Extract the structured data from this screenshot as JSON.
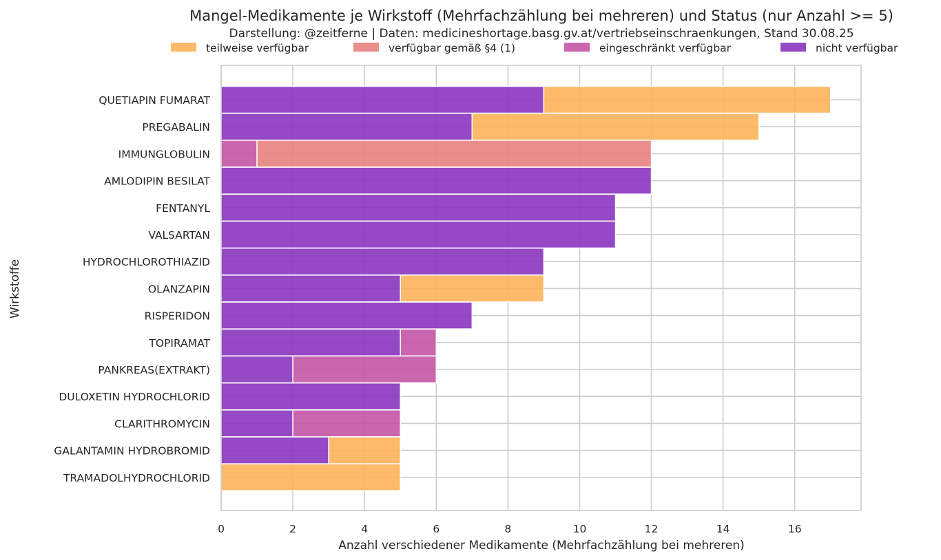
{
  "chart_data": {
    "type": "bar",
    "orientation": "horizontal",
    "stacked": true,
    "title": "Mangel-Medikamente je Wirkstoff (Mehrfachzählung bei mehreren) und Status (nur Anzahl >= 5)",
    "subtitle": "Darstellung: @zeitferne | Daten: medicineshortage.basg.gv.at/vertriebseinschraenkungen, Stand 30.08.25",
    "xlabel": "Anzahl verschiedener Medikamente (Mehrfachzählung bei mehreren)",
    "ylabel": "Wirkstoffe",
    "xlim": [
      0,
      17.85
    ],
    "xticks": [
      "0",
      "2",
      "4",
      "6",
      "8",
      "10",
      "12",
      "14",
      "16"
    ],
    "grid": true,
    "legend_position": "top",
    "categories": [
      "QUETIAPIN FUMARAT",
      "PREGABALIN",
      "IMMUNGLOBULIN",
      "AMLODIPIN BESILAT",
      "FENTANYL",
      "VALSARTAN",
      "HYDROCHLOROTHIAZID",
      "OLANZAPIN",
      "RISPERIDON",
      "TOPIRAMAT",
      "PANKREAS(EXTRAKT)",
      "DULOXETIN HYDROCHLORID",
      "CLARITHROMYCIN",
      "GALANTAMIN HYDROBROMID",
      "TRAMADOLHYDROCHLORID"
    ],
    "stack_order": [
      "nicht verfügbar",
      "eingeschränkt verfügbar",
      "verfügbar gemäß §4 (1)",
      "teilweise verfügbar"
    ],
    "series": [
      {
        "name": "teilweise verfügbar",
        "color": "#fdb35a",
        "values": [
          8,
          8,
          0,
          0,
          0,
          0,
          0,
          4,
          0,
          0,
          0,
          0,
          0,
          2,
          5
        ]
      },
      {
        "name": "verfügbar gemäß §4 (1)",
        "color": "#e8827f",
        "values": [
          0,
          0,
          11,
          0,
          0,
          0,
          0,
          0,
          0,
          0,
          0,
          0,
          0,
          0,
          0
        ]
      },
      {
        "name": "eingeschränkt verfügbar",
        "color": "#c455a6",
        "values": [
          0,
          0,
          1,
          0,
          0,
          0,
          0,
          0,
          0,
          1,
          4,
          0,
          3,
          0,
          0
        ]
      },
      {
        "name": "nicht verfügbar",
        "color": "#8a35bf",
        "values": [
          9,
          7,
          0,
          12,
          11,
          11,
          9,
          5,
          7,
          5,
          2,
          5,
          2,
          3,
          0
        ]
      }
    ]
  }
}
